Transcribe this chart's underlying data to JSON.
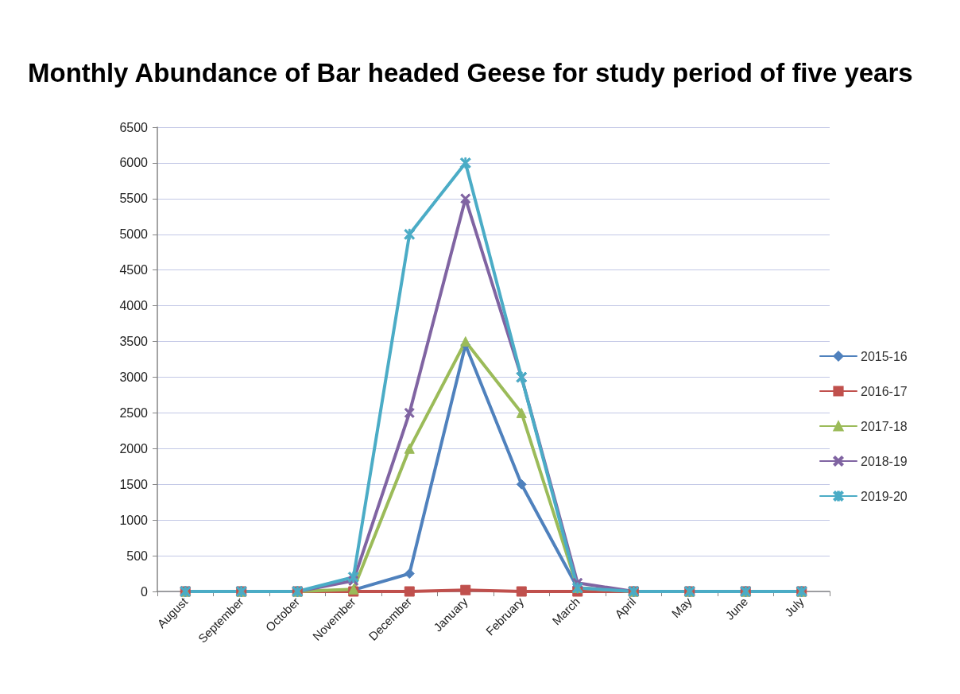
{
  "chart_data": {
    "type": "line",
    "title": "Monthly Abundance of Bar headed Geese for study period of five years",
    "categories": [
      "August",
      "September",
      "October",
      "November",
      "December",
      "January",
      "February",
      "March",
      "April",
      "May",
      "June",
      "July"
    ],
    "series": [
      {
        "name": "2015-16",
        "color": "#4f81bd",
        "marker": "diamond",
        "values": [
          0,
          0,
          0,
          20,
          250,
          3450,
          1500,
          50,
          0,
          0,
          0,
          0
        ]
      },
      {
        "name": "2016-17",
        "color": "#c0504d",
        "marker": "square",
        "values": [
          0,
          0,
          0,
          0,
          0,
          20,
          0,
          0,
          0,
          0,
          0,
          0
        ]
      },
      {
        "name": "2017-18",
        "color": "#9bbb59",
        "marker": "triangle",
        "values": [
          0,
          0,
          0,
          30,
          2000,
          3500,
          2500,
          50,
          0,
          0,
          0,
          0
        ]
      },
      {
        "name": "2018-19",
        "color": "#8064a2",
        "marker": "cross",
        "values": [
          0,
          0,
          0,
          150,
          2500,
          5500,
          3000,
          120,
          0,
          0,
          0,
          0
        ]
      },
      {
        "name": "2019-20",
        "color": "#4bacc6",
        "marker": "star",
        "values": [
          0,
          0,
          0,
          200,
          5000,
          6000,
          3000,
          50,
          0,
          0,
          0,
          0
        ]
      }
    ],
    "ylim": [
      0,
      6500
    ],
    "yticks": [
      0,
      500,
      1000,
      1500,
      2000,
      2500,
      3000,
      3500,
      4000,
      4500,
      5000,
      5500,
      6000,
      6500
    ],
    "grid": "y",
    "legend": "right"
  }
}
